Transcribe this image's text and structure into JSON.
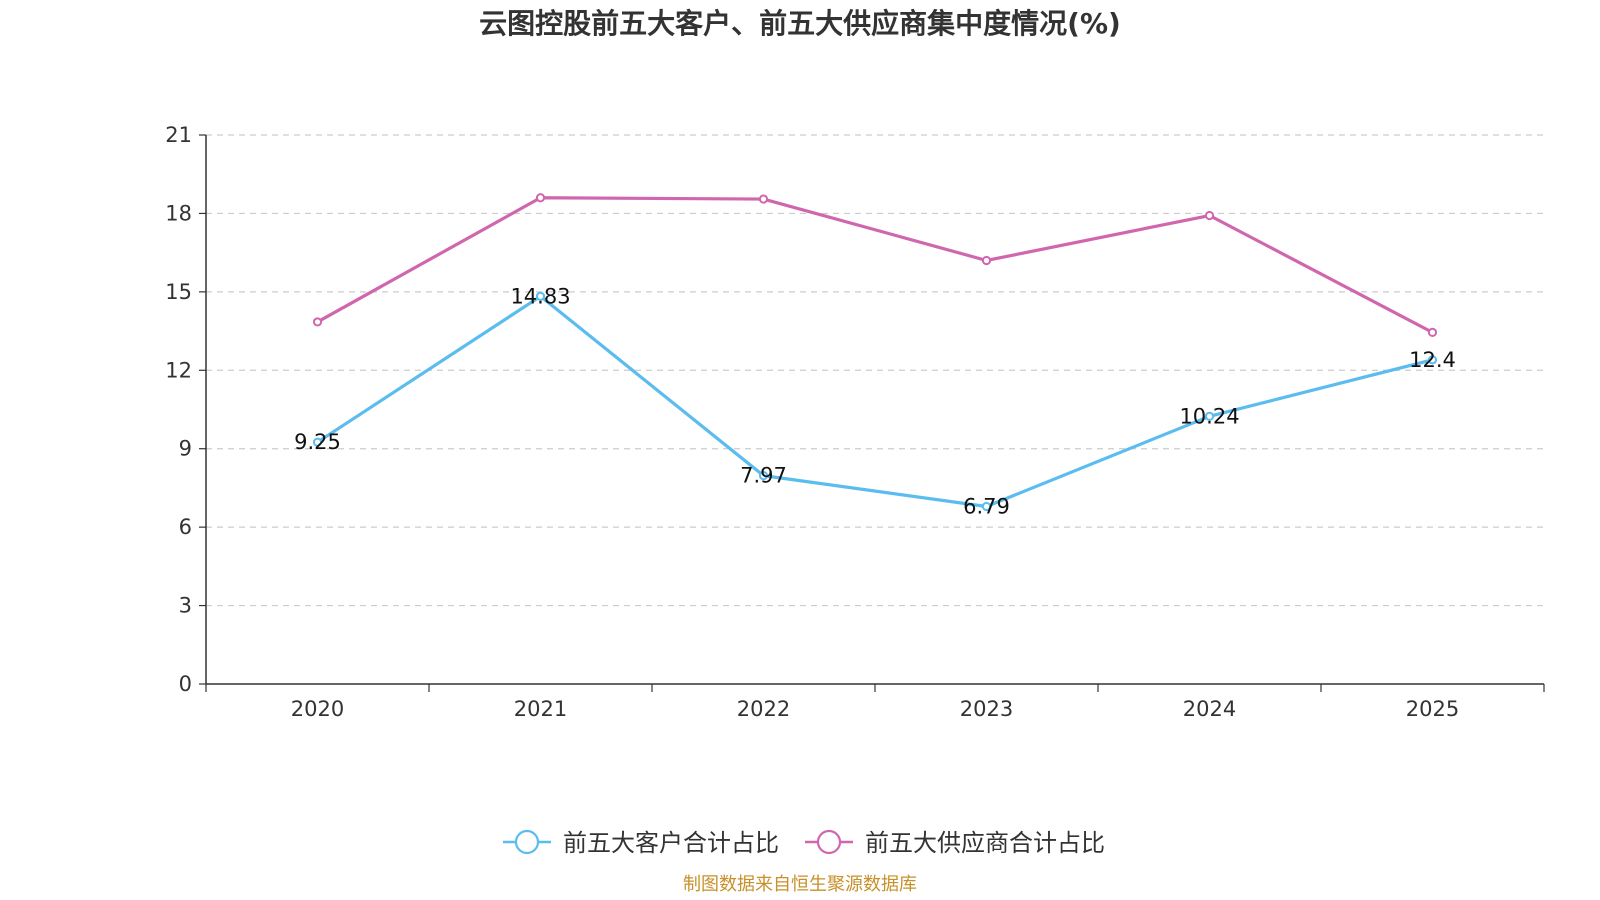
{
  "chart_data": {
    "type": "line",
    "title": "云图控股前五大客户、前五大供应商集中度情况(%)",
    "categories": [
      "2020",
      "2021",
      "2022",
      "2023",
      "2024",
      "2025"
    ],
    "ylim": [
      0,
      21
    ],
    "yticks": [
      0,
      3,
      6,
      9,
      12,
      15,
      18,
      21
    ],
    "grid": true,
    "legend_position": "bottom-center",
    "series": [
      {
        "name": "前五大客户合计占比",
        "color": "#5bbcf0",
        "values": [
          9.25,
          14.83,
          7.97,
          6.79,
          10.24,
          12.4
        ],
        "labels": [
          "9.25",
          "14.83",
          "7.97",
          "6.79",
          "10.24",
          "12.4"
        ],
        "show_labels": true
      },
      {
        "name": "前五大供应商合计占比",
        "color": "#d066ae",
        "values": [
          13.85,
          18.6,
          18.55,
          16.2,
          17.92,
          13.45
        ],
        "show_labels": false
      }
    ]
  },
  "source": "制图数据来自恒生聚源数据库"
}
